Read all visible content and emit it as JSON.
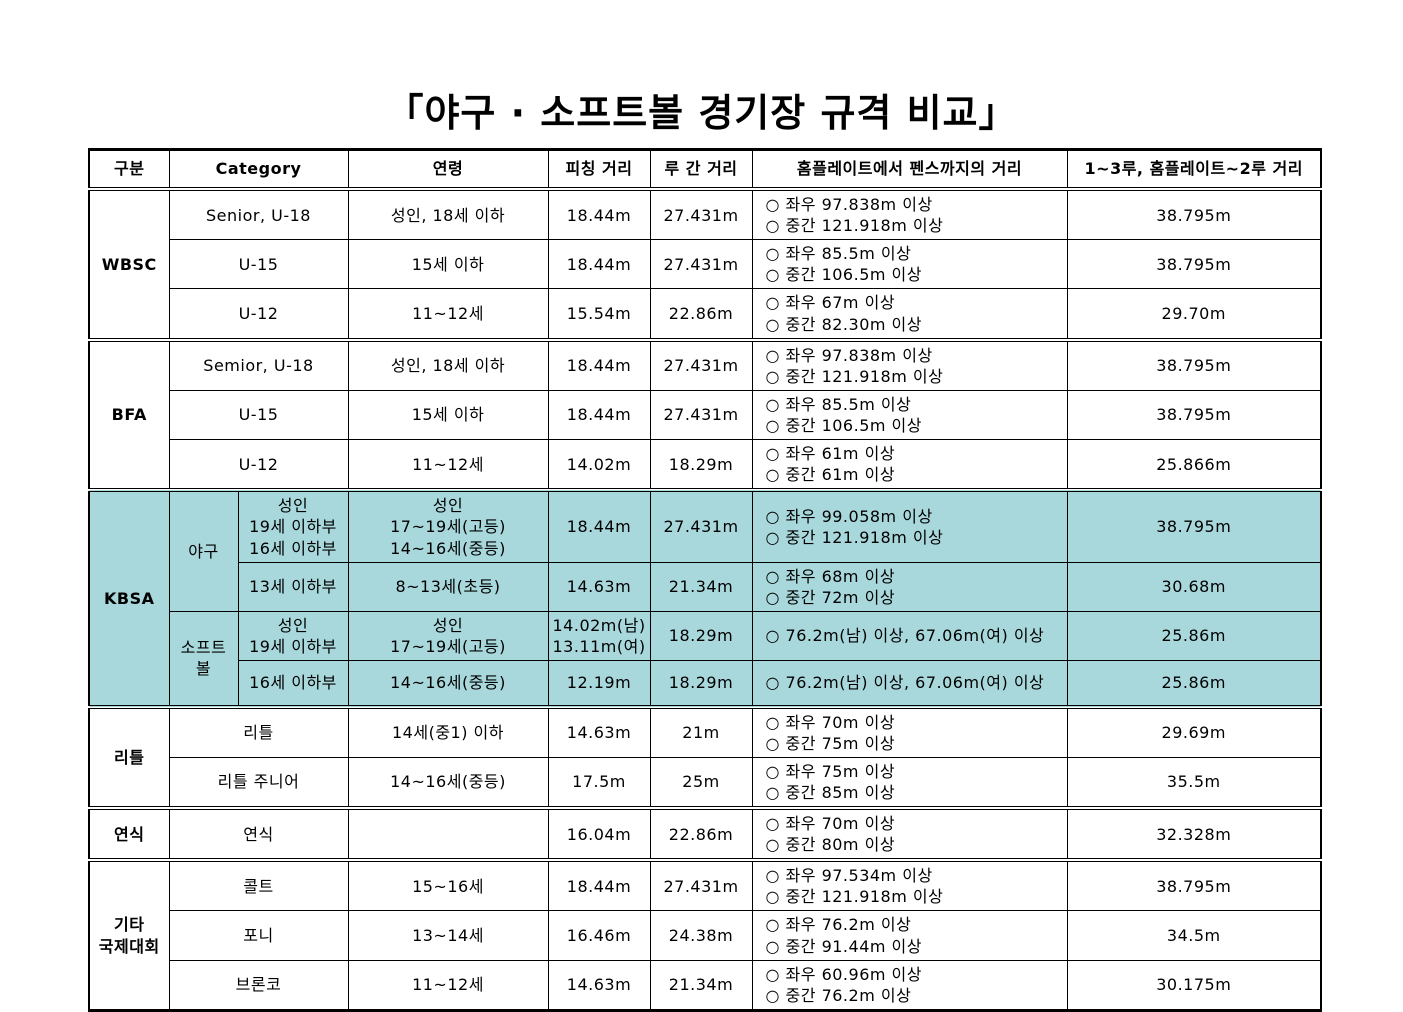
{
  "page": {
    "title": "「야구 · 소프트볼 경기장 규격 비교」"
  },
  "colors": {
    "highlight_row_background": "#a8d8dc",
    "border": "#000000",
    "text": "#000000",
    "background": "#ffffff"
  },
  "table": {
    "headers": {
      "group": "구분",
      "category": "Category",
      "age": "연령",
      "pitch": "피칭 거리",
      "base": "루 간 거리",
      "fence": "홈플레이트에서 펜스까지의 거리",
      "dist": "1~3루, 홈플레이트~2루 거리"
    },
    "groups": {
      "wbsc": "WBSC",
      "bfa": "BFA",
      "kbsa": "KBSA",
      "little": "리틀",
      "yeonsik": "연식",
      "etc": "기타\n국제대회"
    },
    "sports": {
      "baseball": "야구",
      "softball": "소프트볼"
    },
    "rows": [
      {
        "category": "Senior, U-18",
        "age": "성인, 18세 이하",
        "pitch": "18.44m",
        "base": "27.431m",
        "fence": "○ 좌우 97.838m 이상\n○ 중간 121.918m 이상",
        "dist": "38.795m"
      },
      {
        "category": "U-15",
        "age": "15세 이하",
        "pitch": "18.44m",
        "base": "27.431m",
        "fence": "○ 좌우 85.5m 이상\n○ 중간 106.5m 이상",
        "dist": "38.795m"
      },
      {
        "category": "U-12",
        "age": "11~12세",
        "pitch": "15.54m",
        "base": "22.86m",
        "fence": "○ 좌우 67m 이상\n○ 중간 82.30m 이상",
        "dist": "29.70m"
      },
      {
        "category": "Semior, U-18",
        "age": "성인, 18세 이하",
        "pitch": "18.44m",
        "base": "27.431m",
        "fence": "○ 좌우 97.838m 이상\n○ 중간 121.918m 이상",
        "dist": "38.795m"
      },
      {
        "category": "U-15",
        "age": "15세 이하",
        "pitch": "18.44m",
        "base": "27.431m",
        "fence": "○ 좌우 85.5m 이상\n○ 중간 106.5m 이상",
        "dist": "38.795m"
      },
      {
        "category": "U-12",
        "age": "11~12세",
        "pitch": "14.02m",
        "base": "18.29m",
        "fence": "○ 좌우 61m 이상\n○ 중간 61m 이상",
        "dist": "25.866m"
      },
      {
        "division": "성인\n19세 이하부\n16세 이하부",
        "age": "성인\n17~19세(고등)\n14~16세(중등)",
        "pitch": "18.44m",
        "base": "27.431m",
        "fence": "○ 좌우 99.058m 이상\n○ 중간 121.918m 이상",
        "dist": "38.795m"
      },
      {
        "division": "13세 이하부",
        "age": "8~13세(초등)",
        "pitch": "14.63m",
        "base": "21.34m",
        "fence": "○ 좌우 68m 이상\n○ 중간 72m 이상",
        "dist": "30.68m"
      },
      {
        "division": "성인\n19세 이하부",
        "age": "성인\n17~19세(고등)",
        "pitch": "14.02m(남)\n13.11m(여)",
        "base": "18.29m",
        "fence": "○ 76.2m(남) 이상, 67.06m(여) 이상",
        "dist": "25.86m"
      },
      {
        "division": "16세 이하부",
        "age": "14~16세(중등)",
        "pitch": "12.19m",
        "base": "18.29m",
        "fence": "○ 76.2m(남) 이상, 67.06m(여) 이상",
        "dist": "25.86m"
      },
      {
        "category": "리틀",
        "age": "14세(중1) 이하",
        "pitch": "14.63m",
        "base": "21m",
        "fence": "○ 좌우 70m 이상\n○ 중간 75m 이상",
        "dist": "29.69m"
      },
      {
        "category": "리틀 주니어",
        "age": "14~16세(중등)",
        "pitch": "17.5m",
        "base": "25m",
        "fence": "○ 좌우 75m 이상\n○ 중간 85m 이상",
        "dist": "35.5m"
      },
      {
        "category": "연식",
        "age": "",
        "pitch": "16.04m",
        "base": "22.86m",
        "fence": "○ 좌우 70m 이상\n○ 중간 80m 이상",
        "dist": "32.328m"
      },
      {
        "category": "콜트",
        "age": "15~16세",
        "pitch": "18.44m",
        "base": "27.431m",
        "fence": "○ 좌우 97.534m 이상\n○ 중간 121.918m 이상",
        "dist": "38.795m"
      },
      {
        "category": "포니",
        "age": "13~14세",
        "pitch": "16.46m",
        "base": "24.38m",
        "fence": "○ 좌우 76.2m 이상\n○ 중간 91.44m 이상",
        "dist": "34.5m"
      },
      {
        "category": "브론코",
        "age": "11~12세",
        "pitch": "14.63m",
        "base": "21.34m",
        "fence": "○ 좌우 60.96m 이상\n○ 중간 76.2m 이상",
        "dist": "30.175m"
      }
    ]
  }
}
